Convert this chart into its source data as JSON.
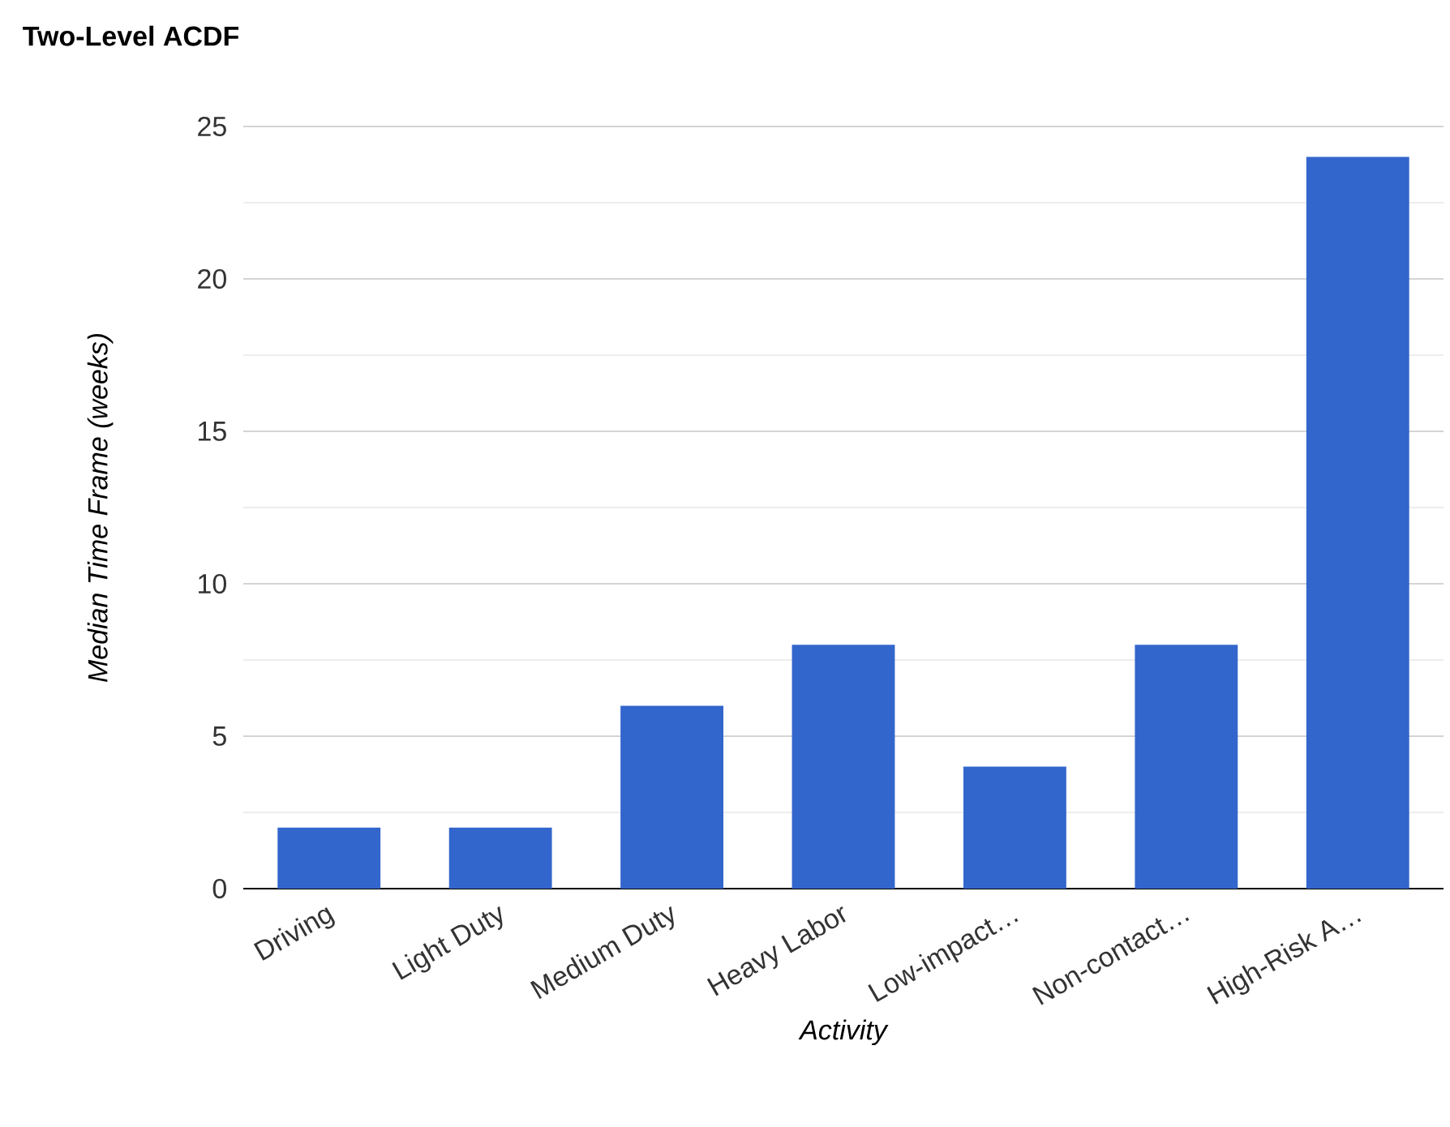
{
  "chart_data": {
    "type": "bar",
    "title": "Two-Level ACDF",
    "xlabel": "Activity",
    "ylabel": "Median Time Frame (weeks)",
    "categories": [
      "Driving",
      "Light Duty",
      "Medium Duty",
      "Heavy Labor",
      "Low-impact…",
      "Non-contact…",
      "High-Risk A…"
    ],
    "values": [
      2,
      2,
      6,
      8,
      4,
      8,
      24
    ],
    "color": "#3366cc",
    "ylim": [
      0,
      25
    ],
    "yticks": [
      0,
      {
        "value": 2.5,
        "label": null
      },
      5,
      {
        "value": 7.5,
        "label": null
      },
      10,
      {
        "value": 12.5,
        "label": null
      },
      15,
      {
        "value": 17.5,
        "label": null
      },
      20,
      {
        "value": 22.5,
        "label": null
      },
      25
    ],
    "grid": true
  }
}
